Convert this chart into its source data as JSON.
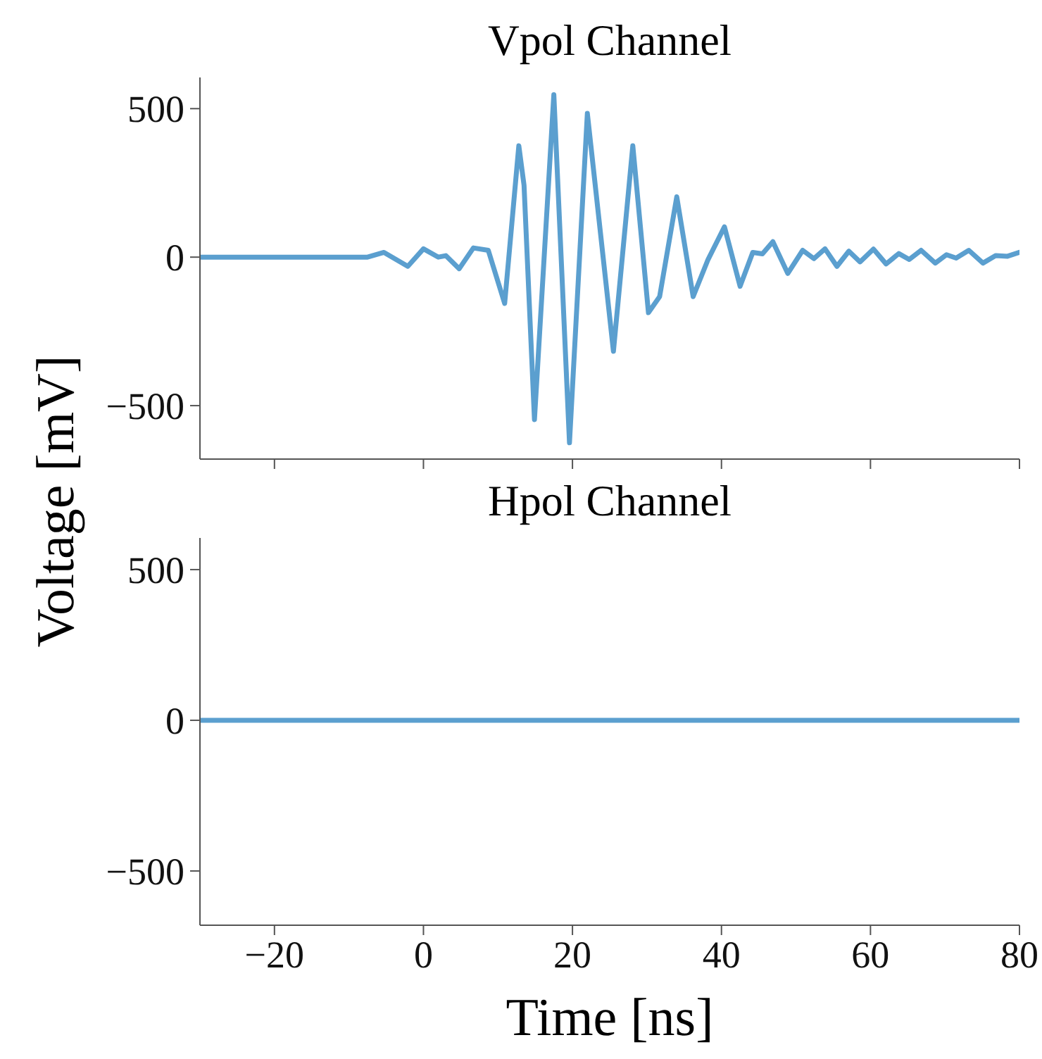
{
  "chart_data": [
    {
      "type": "line",
      "title": "Vpol Channel",
      "ylabel": "Voltage [mV]",
      "xlim": [
        -30,
        80
      ],
      "ylim": [
        -680,
        605
      ],
      "xticks": [
        -20,
        0,
        20,
        40,
        60,
        80
      ],
      "yticks": [
        -500,
        0,
        500
      ],
      "tick_labels": "y",
      "grid": false,
      "legend": false,
      "marker": "none",
      "line_style": "solid",
      "series": [
        {
          "color": "#5b9fcf",
          "x": [
            -30,
            -7.5,
            -5.3,
            -2.1,
            0,
            2.0,
            3.0,
            4.8,
            6.7,
            8.7,
            10.9,
            12.8,
            13.5,
            14.9,
            17.5,
            19.6,
            22.0,
            25.5,
            28.1,
            30.2,
            31.7,
            34.0,
            36.2,
            38.2,
            40.4,
            42.5,
            44.2,
            45.5,
            46.9,
            48.9,
            50.9,
            52.4,
            53.9,
            55.5,
            57.1,
            58.6,
            60.4,
            62.1,
            63.8,
            65.2,
            66.8,
            68.7,
            70.2,
            71.5,
            73.2,
            75.1,
            76.8,
            78.4,
            80
          ],
          "values": [
            0,
            0,
            16,
            -31,
            28,
            0,
            5,
            -39,
            31,
            23,
            -156,
            375,
            242,
            -547,
            547,
            -625,
            484,
            -317,
            375,
            -187,
            -133,
            203,
            -133,
            -8,
            102,
            -98,
            16,
            11,
            52,
            -55,
            23,
            -5,
            28,
            -31,
            20,
            -16,
            27,
            -23,
            12,
            -8,
            23,
            -20,
            8,
            -3,
            23,
            -20,
            5,
            3,
            16
          ]
        }
      ]
    },
    {
      "type": "line",
      "title": "Hpol Channel",
      "xlabel": "Time [ns]",
      "xlim": [
        -30,
        80
      ],
      "ylim": [
        -680,
        605
      ],
      "xticks": [
        -20,
        0,
        20,
        40,
        60,
        80
      ],
      "yticks": [
        -500,
        0,
        500
      ],
      "grid": false,
      "legend": false,
      "marker": "none",
      "line_style": "solid",
      "series": [
        {
          "color": "#5b9fcf",
          "x": [
            -30,
            80
          ],
          "values": [
            0,
            0
          ]
        }
      ]
    }
  ]
}
